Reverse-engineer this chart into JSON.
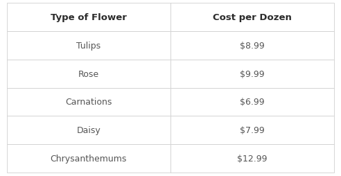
{
  "headers": [
    "Type of Flower",
    "Cost per Dozen"
  ],
  "rows": [
    [
      "Tulips",
      "$8.99"
    ],
    [
      "Rose",
      "$9.99"
    ],
    [
      "Carnations",
      "$6.99"
    ],
    [
      "Daisy",
      "$7.99"
    ],
    [
      "Chrysanthemums",
      "$12.99"
    ]
  ],
  "header_bg": "#ffffff",
  "header_text_color": "#2b2b2b",
  "row_bg": "#ffffff",
  "row_text_color": "#555555",
  "border_color": "#d0d0d0",
  "header_fontsize": 9.5,
  "row_fontsize": 9.0,
  "fig_bg": "#ffffff",
  "fig_width": 4.92,
  "fig_height": 2.55,
  "dpi": 100
}
